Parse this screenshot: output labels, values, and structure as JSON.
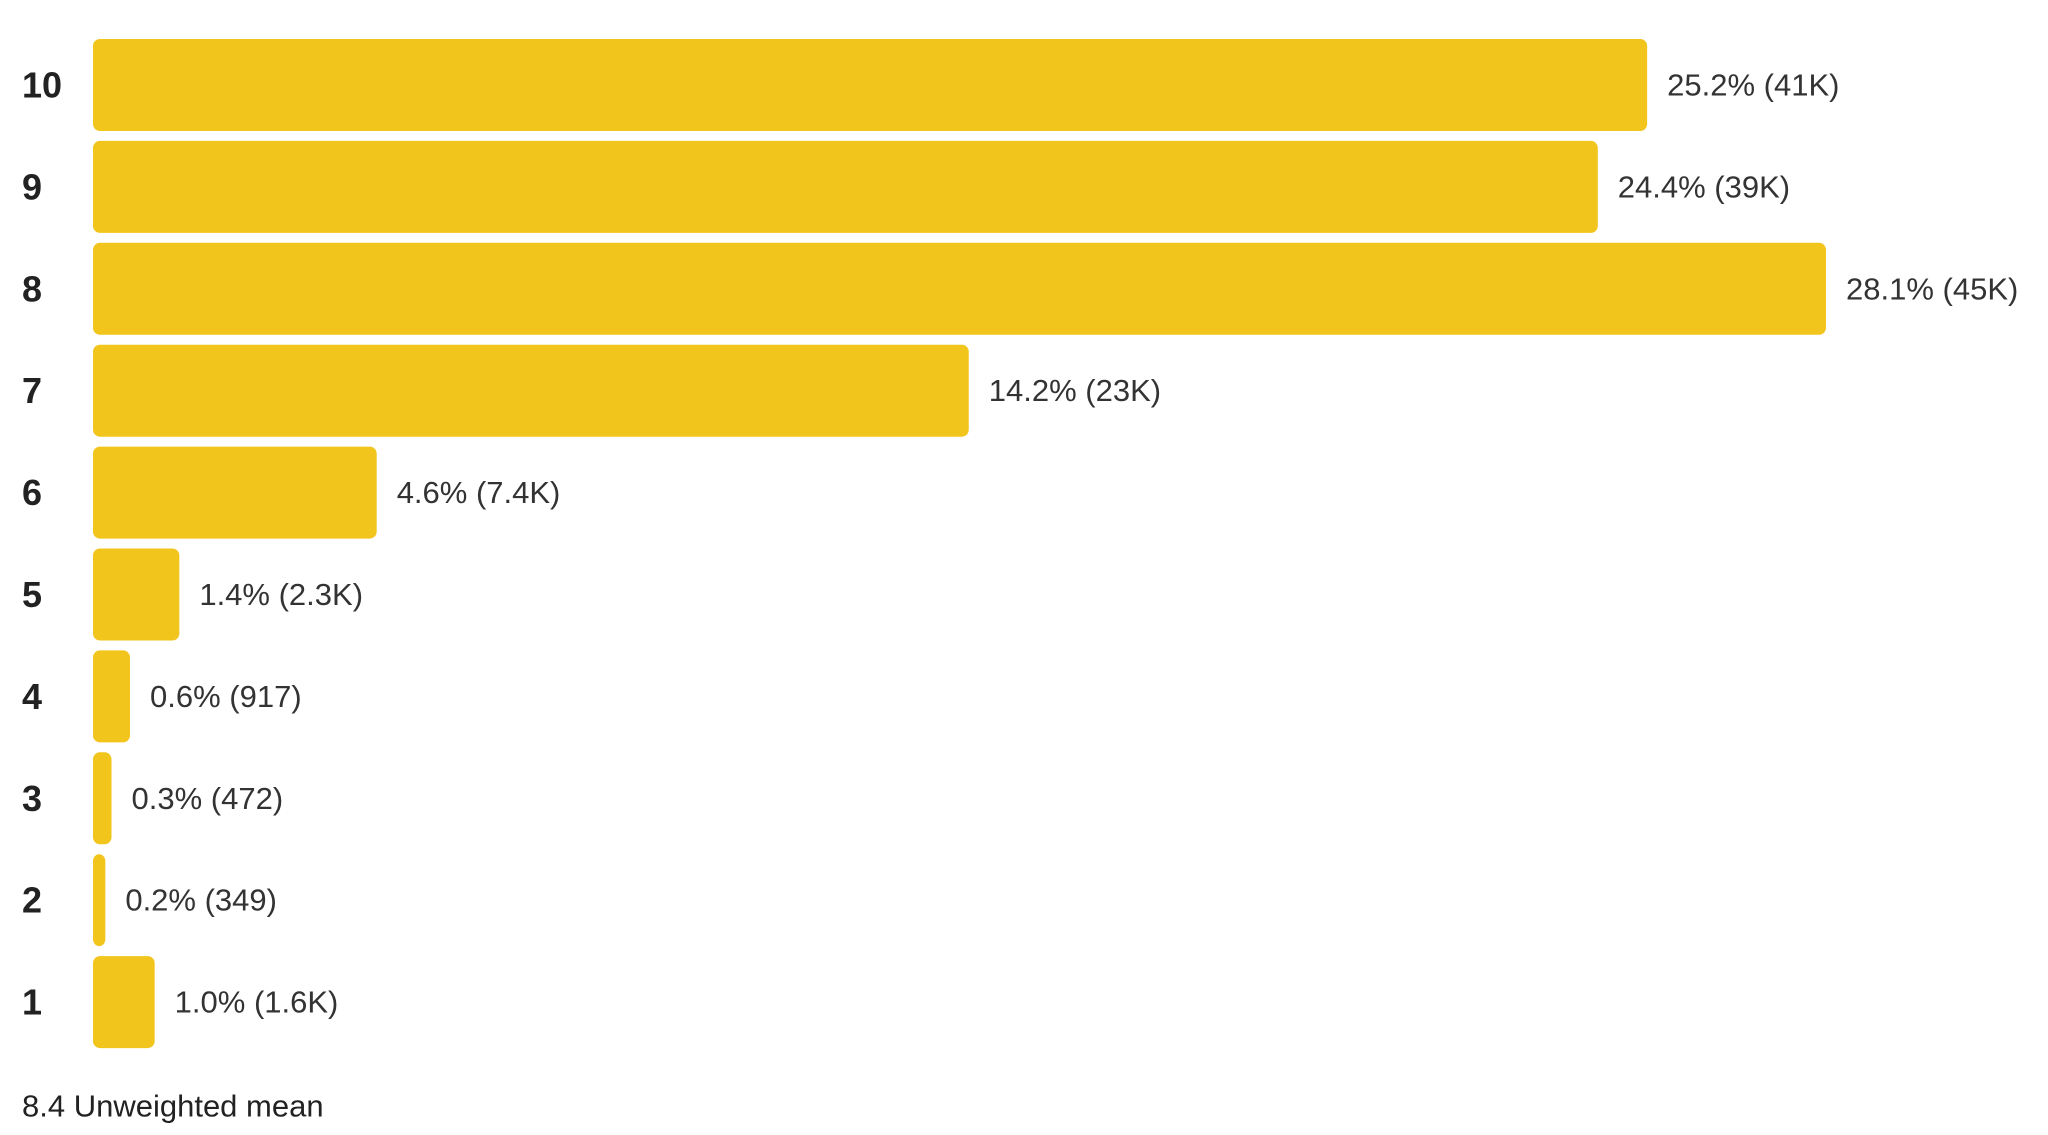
{
  "chart_data": {
    "type": "hbar",
    "categories": [
      "10",
      "9",
      "8",
      "7",
      "6",
      "5",
      "4",
      "3",
      "2",
      "1"
    ],
    "values": [
      25.2,
      24.4,
      28.1,
      14.2,
      4.6,
      1.4,
      0.6,
      0.3,
      0.2,
      1.0
    ],
    "value_labels": [
      "25.2% (41K)",
      "24.4% (39K)",
      "28.1% (45K)",
      "14.2% (23K)",
      "4.6% (7.4K)",
      "1.4% (2.3K)",
      "0.6% (917)",
      "0.3% (472)",
      "0.2% (349)",
      "1.0% (1.6K)"
    ],
    "color": "#f2c51d",
    "caption": "8.4 Unweighted mean"
  }
}
